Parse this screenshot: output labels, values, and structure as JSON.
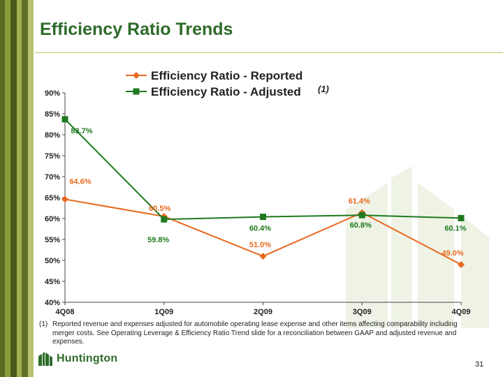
{
  "title": "Efficiency Ratio Trends",
  "chart_data": {
    "type": "line",
    "categories": [
      "4Q08",
      "1Q09",
      "2Q09",
      "3Q09",
      "4Q09"
    ],
    "series": [
      {
        "name": "Efficiency Ratio - Reported",
        "values": [
          64.6,
          60.5,
          51.0,
          61.4,
          49.0
        ],
        "labels": [
          "64.6%",
          "60.5%",
          "51.0%",
          "61.4%",
          "49.0%"
        ],
        "color": "#e8691e",
        "marker": "diamond"
      },
      {
        "name": "Efficiency Ratio - Adjusted",
        "values": [
          83.7,
          59.8,
          60.4,
          60.8,
          60.1
        ],
        "labels": [
          "83.7%",
          "59.8%",
          "60.4%",
          "60.8%",
          "60.1%"
        ],
        "color": "#1f7a1f",
        "marker": "square"
      }
    ],
    "legend_note": "(1)",
    "ylim": [
      40,
      90
    ],
    "yticks": [
      "40%",
      "45%",
      "50%",
      "55%",
      "60%",
      "65%",
      "70%",
      "75%",
      "80%",
      "85%",
      "90%"
    ],
    "ytick_values": [
      40,
      45,
      50,
      55,
      60,
      65,
      70,
      75,
      80,
      85,
      90
    ],
    "legend_position": "top",
    "grid": false
  },
  "footnote": {
    "number": "(1)",
    "text": "Reported revenue and expenses adjusted for automobile operating lease expense and other items affecting comparability including merger costs.  See Operating Leverage & Efficiency Ratio Trend slide for a reconciliation between GAAP and adjusted revenue and expenses."
  },
  "brand": {
    "name": "Huntington"
  },
  "page_number": "31",
  "colors": {
    "title": "#2e6b2a",
    "reported": "#e8691e",
    "adjusted": "#1f7a1f",
    "stripe_dark": "#4a5a1e",
    "stripe_light": "#8a9a3a"
  }
}
